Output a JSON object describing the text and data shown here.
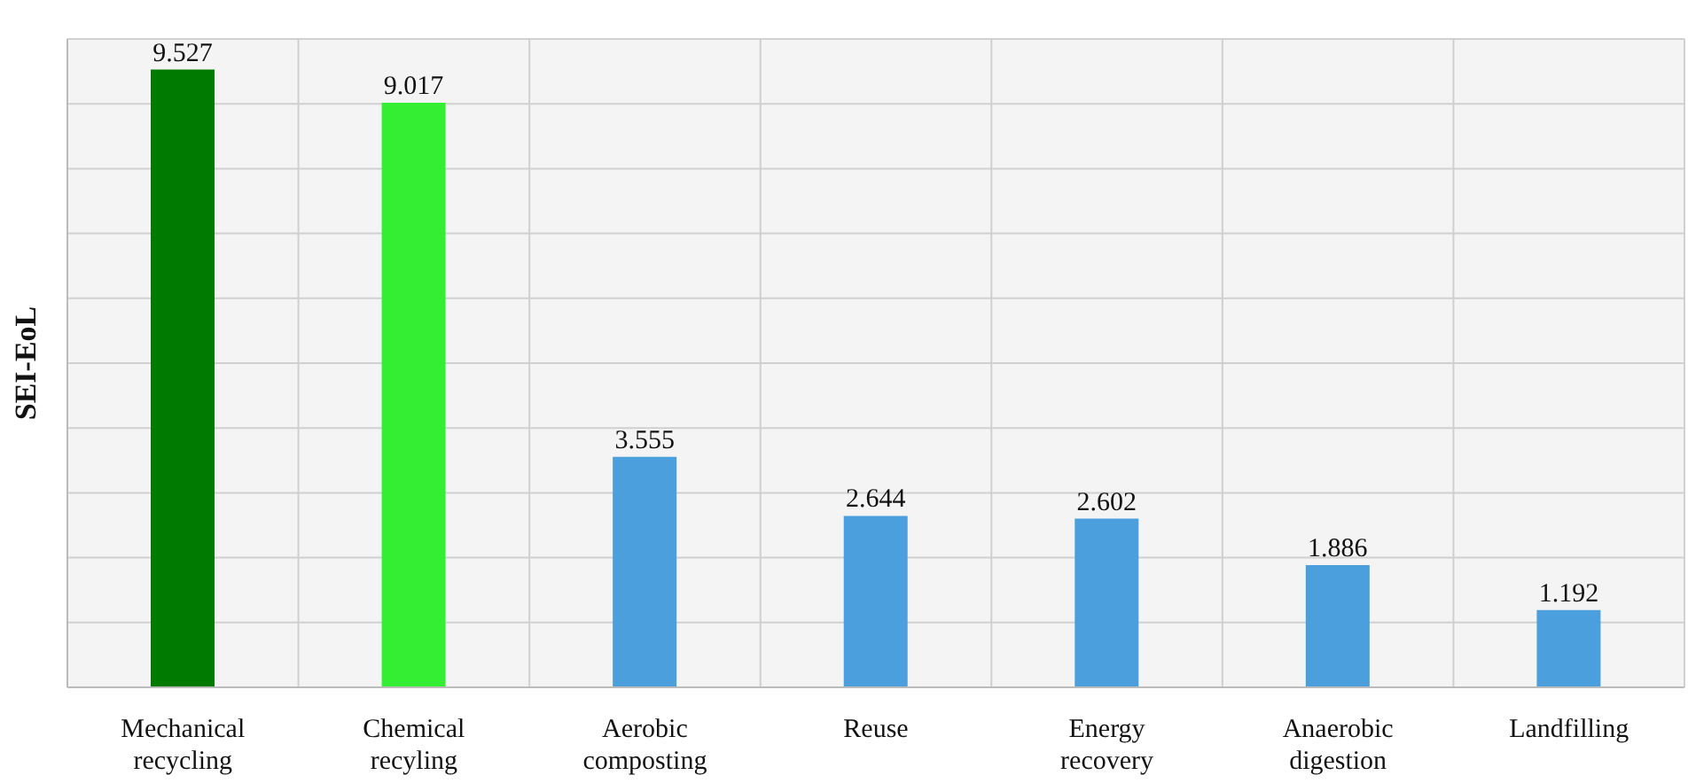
{
  "chart_data": {
    "type": "bar",
    "ylabel": "SEI-EoL",
    "categories": [
      "Mechanical recycling",
      "Chemical recyling",
      "Aerobic composting",
      "Reuse",
      "Energy recovery",
      "Anaerobic digestion",
      "Landfilling"
    ],
    "values": [
      9.527,
      9.017,
      3.555,
      2.644,
      2.602,
      1.886,
      1.192
    ],
    "colors": [
      "#007a00",
      "#33ee33",
      "#4a9fdc",
      "#4a9fdc",
      "#4a9fdc",
      "#4a9fdc",
      "#4a9fdc"
    ],
    "ylim": [
      0,
      10
    ],
    "yticks": [
      {
        "value": 0,
        "label": null
      },
      {
        "value": 1,
        "label": null
      },
      {
        "value": 2,
        "label": null
      },
      {
        "value": 3,
        "label": null
      },
      {
        "value": 4,
        "label": null
      },
      {
        "value": 5,
        "label": null
      },
      {
        "value": 6,
        "label": null
      },
      {
        "value": 7,
        "label": null
      },
      {
        "value": 8,
        "label": null
      },
      {
        "value": 9,
        "label": null
      },
      {
        "value": 10,
        "label": null
      }
    ],
    "tick_labels": "x",
    "grid": true,
    "data_labels": true
  }
}
